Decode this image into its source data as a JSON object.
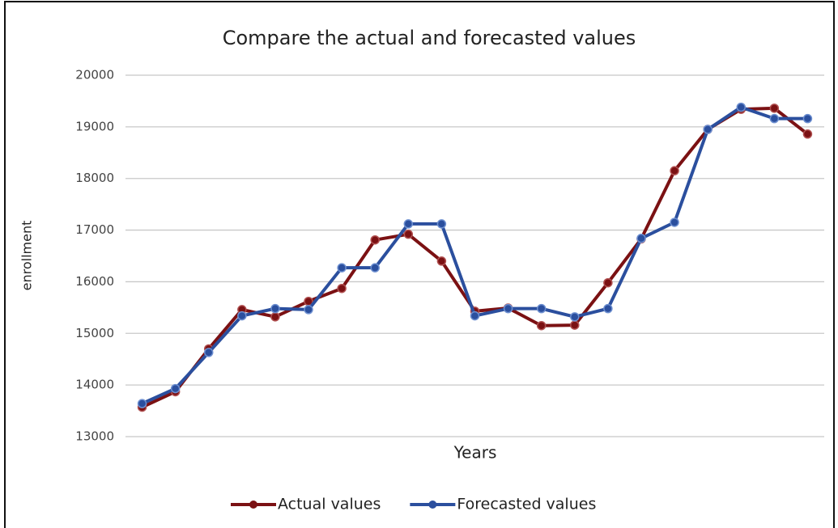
{
  "chart_data": {
    "type": "line",
    "title": "Compare the actual and forecasted values",
    "x_label": "Years",
    "y_label": "enrollment",
    "categories": [
      null,
      null,
      null,
      null,
      null,
      null,
      null,
      null,
      null,
      null,
      null,
      null,
      null,
      null,
      null,
      null,
      null,
      null,
      null,
      null,
      null
    ],
    "series": [
      {
        "name": "Actual values",
        "color": "#7b1113",
        "values": [
          13570,
          13870,
          14700,
          15460,
          15320,
          15620,
          15870,
          16810,
          16920,
          16400,
          15430,
          15490,
          15150,
          15160,
          15980,
          16830,
          18150,
          18950,
          19340,
          19360,
          18860
        ]
      },
      {
        "name": "Forecasted values",
        "color": "#2b4f9e",
        "values": [
          13640,
          13930,
          14630,
          15340,
          15480,
          15460,
          16270,
          16270,
          17120,
          17120,
          15340,
          15480,
          15480,
          15320,
          15480,
          16840,
          17150,
          18950,
          19380,
          19160,
          19160
        ]
      }
    ],
    "ylim": [
      13000,
      20000
    ],
    "yticks": [
      13000,
      14000,
      15000,
      16000,
      17000,
      18000,
      19000,
      20000
    ],
    "grid": true,
    "legend": "bottom"
  }
}
